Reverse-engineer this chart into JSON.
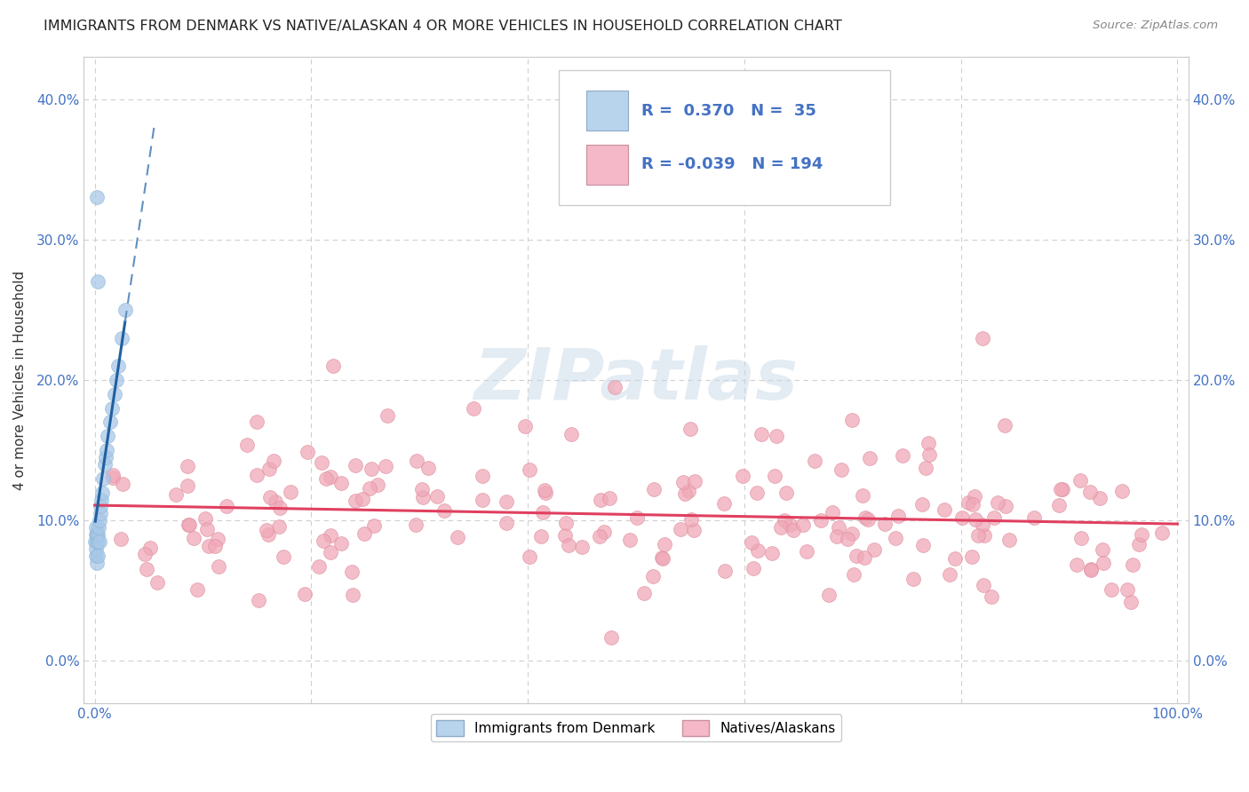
{
  "title": "IMMIGRANTS FROM DENMARK VS NATIVE/ALASKAN 4 OR MORE VEHICLES IN HOUSEHOLD CORRELATION CHART",
  "source": "Source: ZipAtlas.com",
  "ylabel": "4 or more Vehicles in Household",
  "xlim": [
    -1,
    101
  ],
  "ylim": [
    -3,
    43
  ],
  "yticks": [
    0,
    10,
    20,
    30,
    40
  ],
  "ytick_labels": [
    "0.0%",
    "10.0%",
    "20.0%",
    "30.0%",
    "40.0%"
  ],
  "xticks": [
    0,
    20,
    40,
    60,
    80,
    100
  ],
  "xtick_labels_left": [
    "0.0%",
    "",
    "",
    "",
    "",
    ""
  ],
  "xtick_label_right": "100.0%",
  "legend_blue_R": 0.37,
  "legend_blue_N": 35,
  "legend_pink_R": -0.039,
  "legend_pink_N": 194,
  "bg_color": "#ffffff",
  "grid_color": "#d0d0d0",
  "blue_dot_color": "#a8c8e8",
  "blue_dot_edge": "#90b8d8",
  "blue_line_solid_color": "#2060a0",
  "blue_line_dash_color": "#6090c0",
  "pink_dot_color": "#f0a8b8",
  "pink_dot_edge": "#e090a0",
  "pink_line_color": "#e04060",
  "legend_blue_fill": "#b8d4ec",
  "legend_pink_fill": "#f4b8c8",
  "watermark_color": "#c8d8e8",
  "title_color": "#222222",
  "source_color": "#888888",
  "axis_label_color": "#333333",
  "tick_label_color": "#4472c4",
  "dot_size": 130,
  "dot_alpha": 0.75,
  "title_fontsize": 11.5,
  "source_fontsize": 9.5,
  "legend_fontsize": 13,
  "axis_fontsize": 11,
  "tick_fontsize": 11
}
